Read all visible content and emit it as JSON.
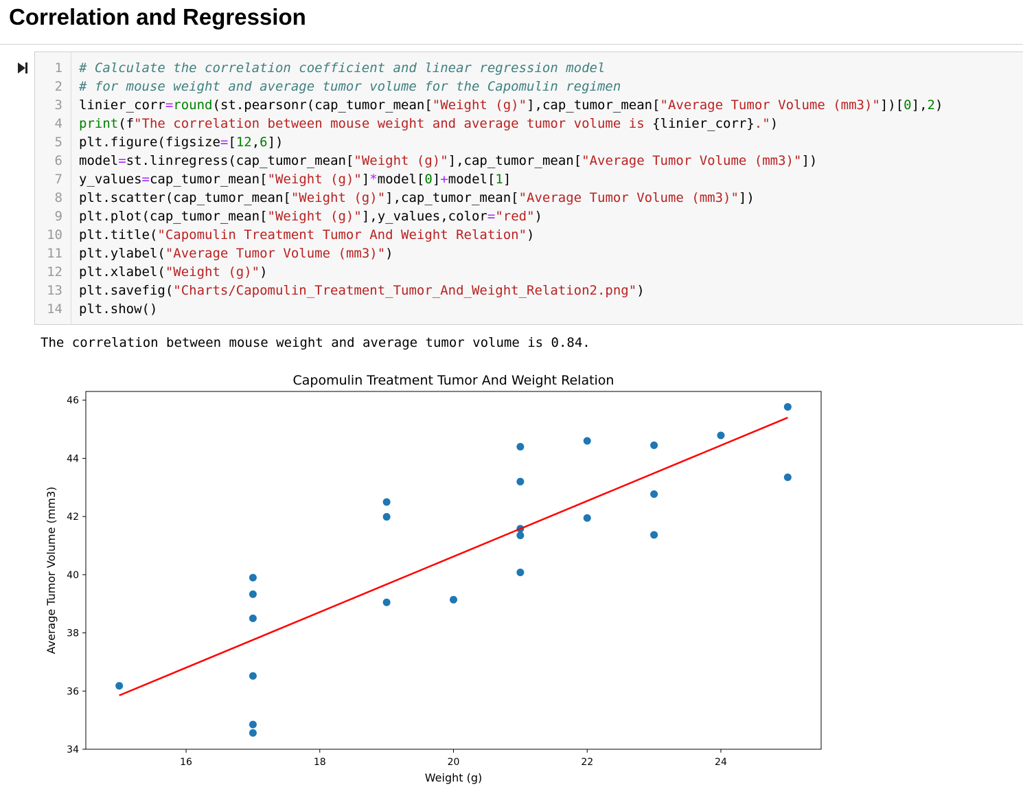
{
  "heading": "Correlation and Regression",
  "run_icon": "run-cell-icon",
  "code_lines": [
    {
      "n": "1",
      "segs": [
        {
          "t": "# Calculate the correlation coefficient and linear regression model",
          "c": "comment"
        }
      ]
    },
    {
      "n": "2",
      "segs": [
        {
          "t": "# for mouse weight and average tumor volume for the Capomulin regimen",
          "c": "comment"
        }
      ]
    },
    {
      "n": "3",
      "segs": [
        {
          "t": "linier_corr",
          "c": ""
        },
        {
          "t": "=",
          "c": "op"
        },
        {
          "t": "round",
          "c": "builtin"
        },
        {
          "t": "(st.pearsonr(cap_tumor_mean[",
          "c": ""
        },
        {
          "t": "\"Weight (g)\"",
          "c": "str"
        },
        {
          "t": "],cap_tumor_mean[",
          "c": ""
        },
        {
          "t": "\"Average Tumor Volume (mm3)\"",
          "c": "str"
        },
        {
          "t": "])[",
          "c": ""
        },
        {
          "t": "0",
          "c": "num"
        },
        {
          "t": "],",
          "c": ""
        },
        {
          "t": "2",
          "c": "num"
        },
        {
          "t": ")",
          "c": ""
        }
      ]
    },
    {
      "n": "4",
      "segs": [
        {
          "t": "print",
          "c": "builtin"
        },
        {
          "t": "(f",
          "c": ""
        },
        {
          "t": "\"The correlation between mouse weight and average tumor volume is ",
          "c": "str"
        },
        {
          "t": "{linier_corr}",
          "c": ""
        },
        {
          "t": ".\"",
          "c": "str"
        },
        {
          "t": ")",
          "c": ""
        }
      ]
    },
    {
      "n": "5",
      "segs": [
        {
          "t": "plt.figure(figsize",
          "c": ""
        },
        {
          "t": "=",
          "c": "op"
        },
        {
          "t": "[",
          "c": ""
        },
        {
          "t": "12",
          "c": "num"
        },
        {
          "t": ",",
          "c": ""
        },
        {
          "t": "6",
          "c": "num"
        },
        {
          "t": "])",
          "c": ""
        }
      ]
    },
    {
      "n": "6",
      "segs": [
        {
          "t": "model",
          "c": ""
        },
        {
          "t": "=",
          "c": "op"
        },
        {
          "t": "st.linregress(cap_tumor_mean[",
          "c": ""
        },
        {
          "t": "\"Weight (g)\"",
          "c": "str"
        },
        {
          "t": "],cap_tumor_mean[",
          "c": ""
        },
        {
          "t": "\"Average Tumor Volume (mm3)\"",
          "c": "str"
        },
        {
          "t": "])",
          "c": ""
        }
      ]
    },
    {
      "n": "7",
      "segs": [
        {
          "t": "y_values",
          "c": ""
        },
        {
          "t": "=",
          "c": "op"
        },
        {
          "t": "cap_tumor_mean[",
          "c": ""
        },
        {
          "t": "\"Weight (g)\"",
          "c": "str"
        },
        {
          "t": "]",
          "c": ""
        },
        {
          "t": "*",
          "c": "op"
        },
        {
          "t": "model[",
          "c": ""
        },
        {
          "t": "0",
          "c": "num"
        },
        {
          "t": "]",
          "c": ""
        },
        {
          "t": "+",
          "c": "op"
        },
        {
          "t": "model[",
          "c": ""
        },
        {
          "t": "1",
          "c": "num"
        },
        {
          "t": "]",
          "c": ""
        }
      ]
    },
    {
      "n": "8",
      "segs": [
        {
          "t": "plt.scatter(cap_tumor_mean[",
          "c": ""
        },
        {
          "t": "\"Weight (g)\"",
          "c": "str"
        },
        {
          "t": "],cap_tumor_mean[",
          "c": ""
        },
        {
          "t": "\"Average Tumor Volume (mm3)\"",
          "c": "str"
        },
        {
          "t": "])",
          "c": ""
        }
      ]
    },
    {
      "n": "9",
      "segs": [
        {
          "t": "plt.plot(cap_tumor_mean[",
          "c": ""
        },
        {
          "t": "\"Weight (g)\"",
          "c": "str"
        },
        {
          "t": "],y_values,color",
          "c": ""
        },
        {
          "t": "=",
          "c": "op"
        },
        {
          "t": "\"red\"",
          "c": "str"
        },
        {
          "t": ")",
          "c": ""
        }
      ]
    },
    {
      "n": "10",
      "segs": [
        {
          "t": "plt.title(",
          "c": ""
        },
        {
          "t": "\"Capomulin Treatment Tumor And Weight Relation\"",
          "c": "str"
        },
        {
          "t": ")",
          "c": ""
        }
      ]
    },
    {
      "n": "11",
      "segs": [
        {
          "t": "plt.ylabel(",
          "c": ""
        },
        {
          "t": "\"Average Tumor Volume (mm3)\"",
          "c": "str"
        },
        {
          "t": ")",
          "c": ""
        }
      ]
    },
    {
      "n": "12",
      "segs": [
        {
          "t": "plt.xlabel(",
          "c": ""
        },
        {
          "t": "\"Weight (g)\"",
          "c": "str"
        },
        {
          "t": ")",
          "c": ""
        }
      ]
    },
    {
      "n": "13",
      "segs": [
        {
          "t": "plt.savefig(",
          "c": ""
        },
        {
          "t": "\"Charts/Capomulin_Treatment_Tumor_And_Weight_Relation2.png\"",
          "c": "str"
        },
        {
          "t": ")",
          "c": ""
        }
      ]
    },
    {
      "n": "14",
      "segs": [
        {
          "t": "plt.show()",
          "c": ""
        }
      ]
    }
  ],
  "output_text": "The correlation between mouse weight and average tumor volume is 0.84.",
  "colors": {
    "points": "#1f77b4",
    "line": "#ff0000"
  },
  "chart_data": {
    "type": "scatter",
    "title": "Capomulin Treatment Tumor And Weight Relation",
    "xlabel": "Weight (g)",
    "ylabel": "Average Tumor Volume (mm3)",
    "xlim": [
      14.5,
      25.5
    ],
    "ylim": [
      34,
      46.3
    ],
    "xticks": [
      16,
      18,
      20,
      22,
      24
    ],
    "yticks": [
      34,
      36,
      38,
      40,
      42,
      44,
      46
    ],
    "grid": false,
    "points": [
      [
        15,
        36.18
      ],
      [
        17,
        39.9
      ],
      [
        17,
        39.33
      ],
      [
        17,
        38.5
      ],
      [
        17,
        36.52
      ],
      [
        17,
        34.85
      ],
      [
        17,
        34.56
      ],
      [
        19,
        42.5
      ],
      [
        19,
        41.99
      ],
      [
        19,
        39.05
      ],
      [
        20,
        39.14
      ],
      [
        21,
        44.4
      ],
      [
        21,
        43.2
      ],
      [
        21,
        41.58
      ],
      [
        21,
        41.35
      ],
      [
        21,
        40.08
      ],
      [
        22,
        44.6
      ],
      [
        22,
        41.95
      ],
      [
        23,
        44.45
      ],
      [
        23,
        42.77
      ],
      [
        23,
        41.37
      ],
      [
        24,
        44.79
      ],
      [
        25,
        45.77
      ],
      [
        25,
        43.35
      ]
    ],
    "regression_line": {
      "x": [
        15,
        25
      ],
      "y": [
        35.85,
        45.4
      ]
    }
  }
}
